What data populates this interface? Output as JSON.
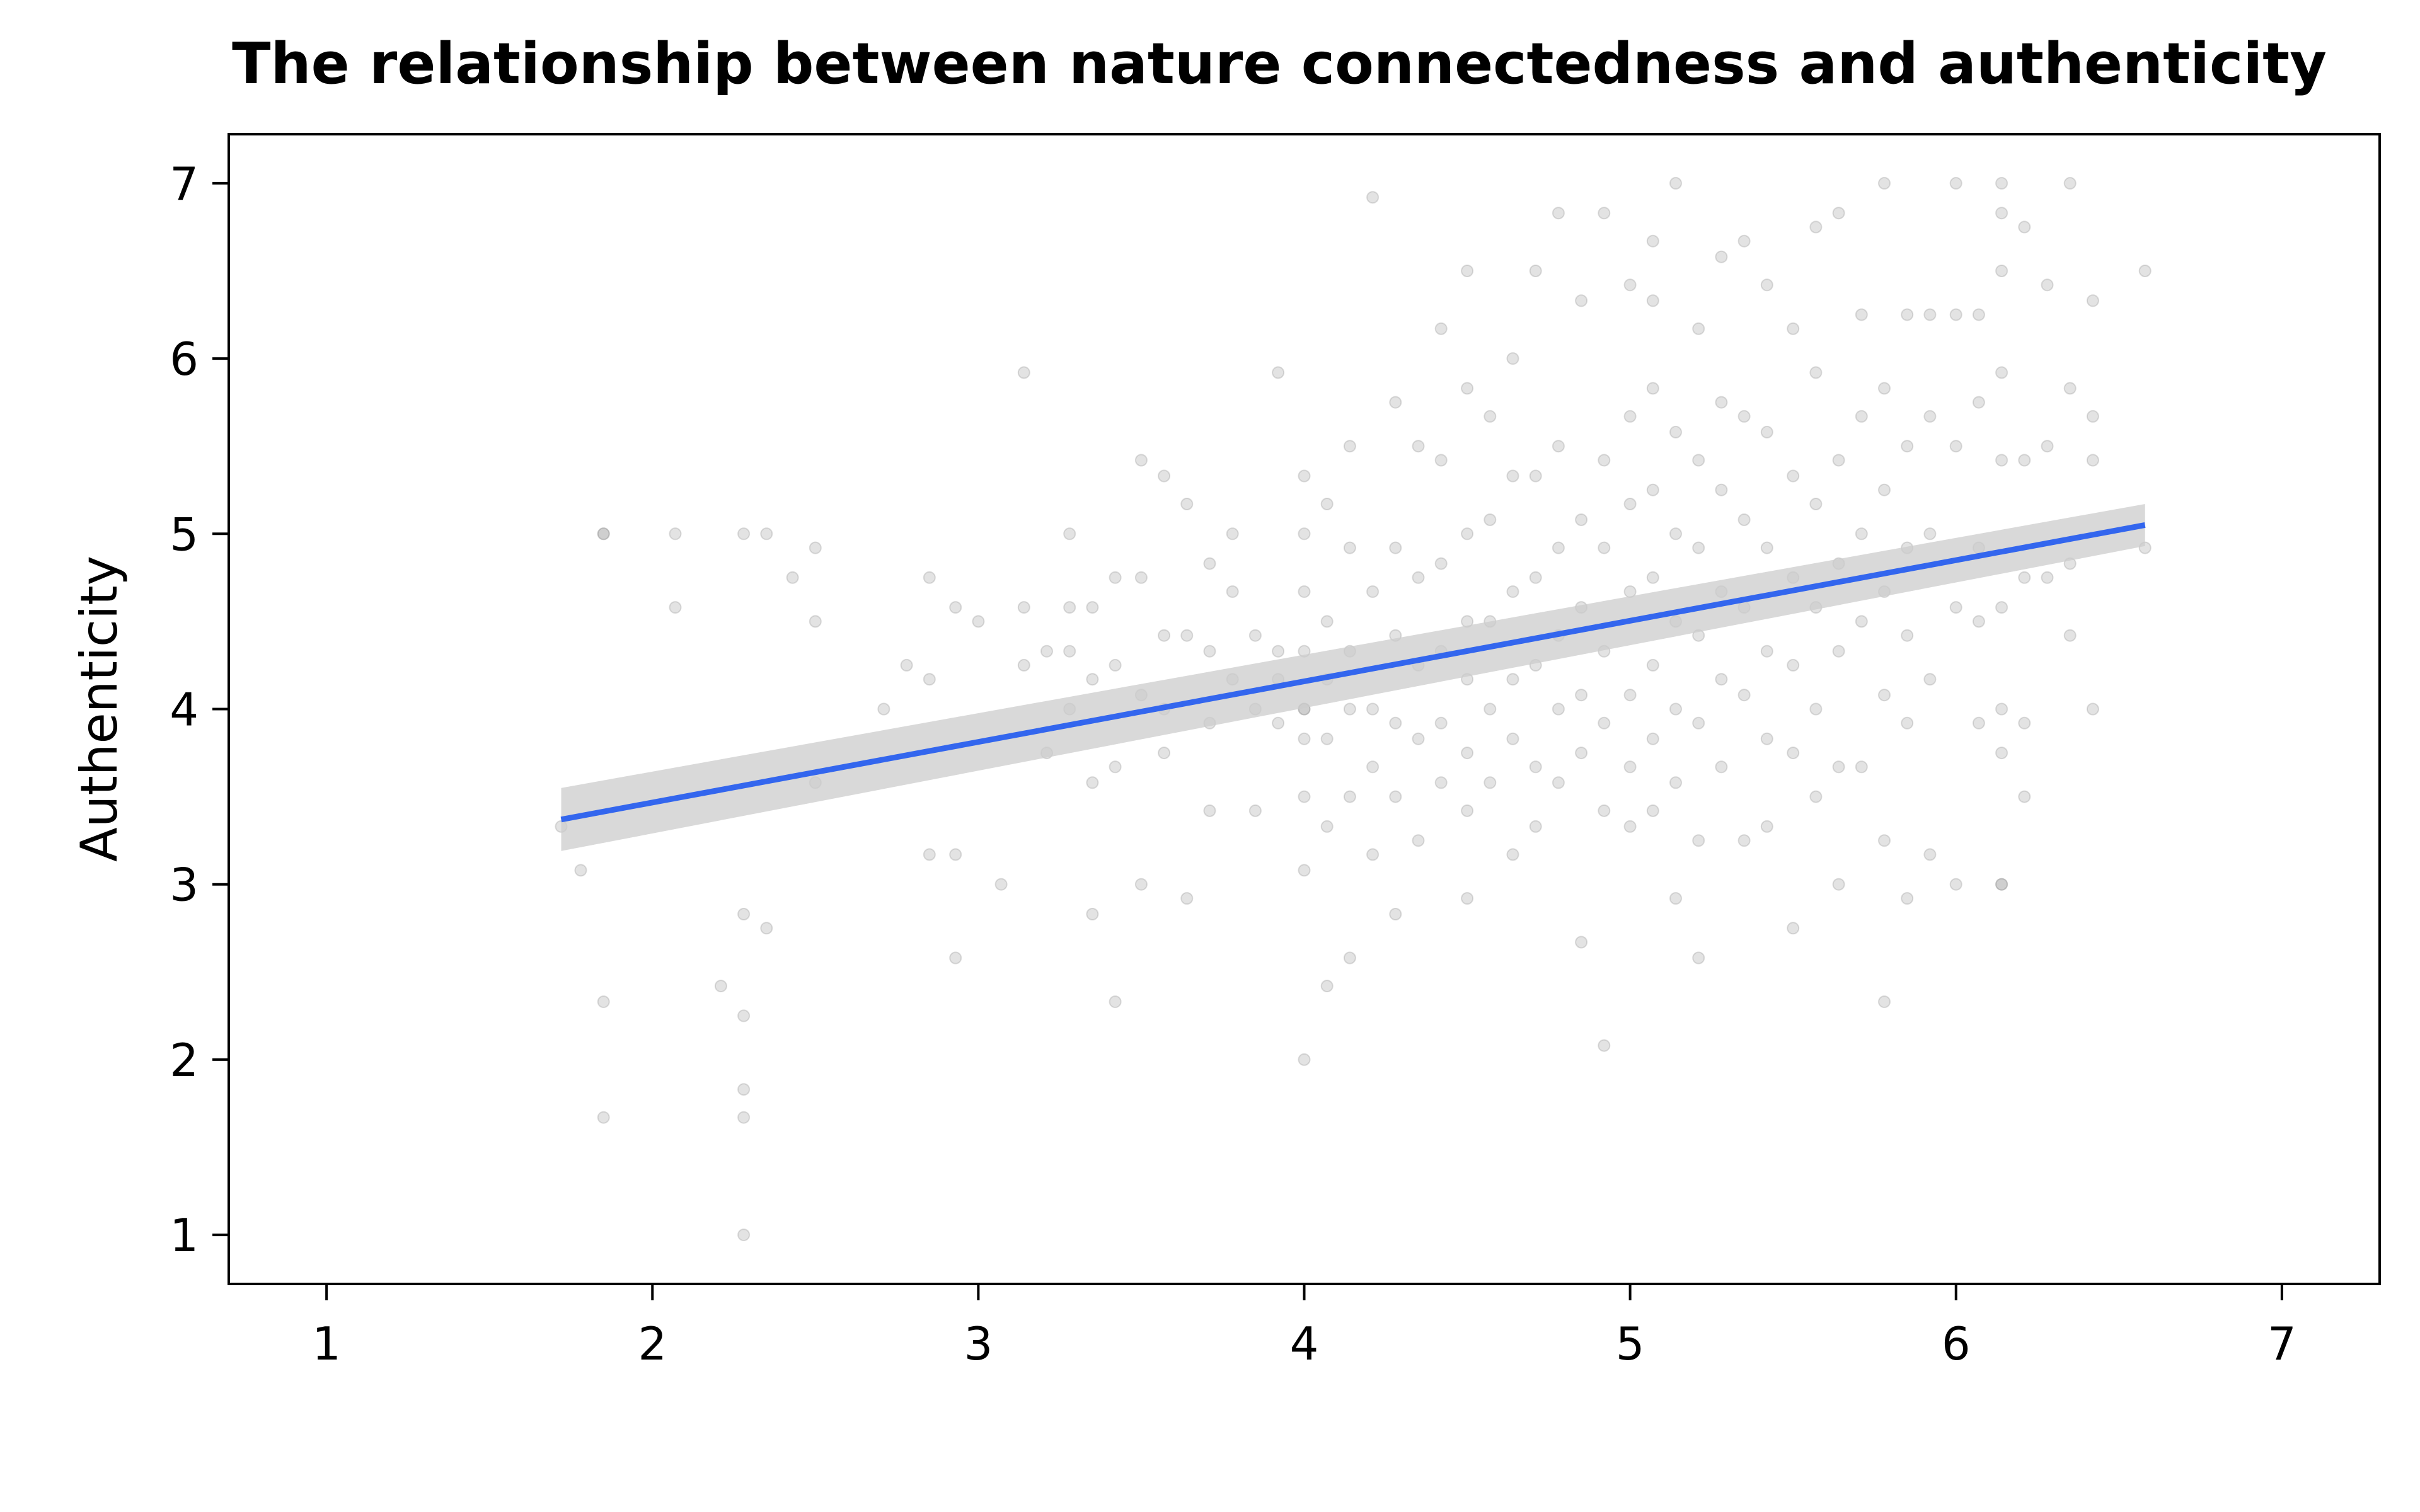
{
  "chart_data": {
    "type": "scatter",
    "title": "The relationship between nature connectedness and authenticity",
    "xlabel": "",
    "ylabel": "Authenticity",
    "xlim": [
      0.7,
      7.3
    ],
    "ylim": [
      0.72,
      7.28
    ],
    "xticks": [
      1,
      2,
      3,
      4,
      5,
      6,
      7
    ],
    "yticks": [
      1,
      2,
      3,
      4,
      5,
      6,
      7
    ],
    "grid": false,
    "colors": {
      "points": "#9a9a9a",
      "line": "#3366ee",
      "band": "#cccccc"
    },
    "regression": {
      "x": [
        1.72,
        6.58
      ],
      "y": [
        3.37,
        5.05
      ],
      "ci_halfwidth_at_ends": [
        0.18,
        0.12
      ]
    },
    "points": [
      [
        1.72,
        3.33
      ],
      [
        1.78,
        3.08
      ],
      [
        1.85,
        5.0
      ],
      [
        1.85,
        5.0
      ],
      [
        1.85,
        2.33
      ],
      [
        1.85,
        1.67
      ],
      [
        2.07,
        5.0
      ],
      [
        2.07,
        4.58
      ],
      [
        2.21,
        2.42
      ],
      [
        2.28,
        5.0
      ],
      [
        2.28,
        2.83
      ],
      [
        2.28,
        2.25
      ],
      [
        2.28,
        1.83
      ],
      [
        2.28,
        1.67
      ],
      [
        2.28,
        1.0
      ],
      [
        2.35,
        5.0
      ],
      [
        2.35,
        2.75
      ],
      [
        2.43,
        4.75
      ],
      [
        2.5,
        4.92
      ],
      [
        2.5,
        4.5
      ],
      [
        2.5,
        3.58
      ],
      [
        2.71,
        4.0
      ],
      [
        2.78,
        4.25
      ],
      [
        2.85,
        4.75
      ],
      [
        2.85,
        4.17
      ],
      [
        2.85,
        3.17
      ],
      [
        2.93,
        4.58
      ],
      [
        2.93,
        3.17
      ],
      [
        2.93,
        2.58
      ],
      [
        3.0,
        4.5
      ],
      [
        3.07,
        3.0
      ],
      [
        3.14,
        5.92
      ],
      [
        3.14,
        4.58
      ],
      [
        3.14,
        4.25
      ],
      [
        3.21,
        3.75
      ],
      [
        3.21,
        4.33
      ],
      [
        3.28,
        5.0
      ],
      [
        3.28,
        4.58
      ],
      [
        3.28,
        4.33
      ],
      [
        3.28,
        4.0
      ],
      [
        3.35,
        4.58
      ],
      [
        3.35,
        4.17
      ],
      [
        3.35,
        3.58
      ],
      [
        3.35,
        2.83
      ],
      [
        3.42,
        4.75
      ],
      [
        3.42,
        4.25
      ],
      [
        3.42,
        3.67
      ],
      [
        3.42,
        2.33
      ],
      [
        3.5,
        5.42
      ],
      [
        3.5,
        4.75
      ],
      [
        3.5,
        4.08
      ],
      [
        3.5,
        3.0
      ],
      [
        3.57,
        5.33
      ],
      [
        3.57,
        4.42
      ],
      [
        3.57,
        4.0
      ],
      [
        3.57,
        3.75
      ],
      [
        3.64,
        5.17
      ],
      [
        3.64,
        4.42
      ],
      [
        3.64,
        2.92
      ],
      [
        3.71,
        4.83
      ],
      [
        3.71,
        4.33
      ],
      [
        3.71,
        3.92
      ],
      [
        3.71,
        3.42
      ],
      [
        3.78,
        5.0
      ],
      [
        3.78,
        4.67
      ],
      [
        3.78,
        4.17
      ],
      [
        3.85,
        4.42
      ],
      [
        3.85,
        4.0
      ],
      [
        3.85,
        3.42
      ],
      [
        3.92,
        5.92
      ],
      [
        3.92,
        4.33
      ],
      [
        3.92,
        4.17
      ],
      [
        3.92,
        3.92
      ],
      [
        4.0,
        5.33
      ],
      [
        4.0,
        5.0
      ],
      [
        4.0,
        4.67
      ],
      [
        4.0,
        4.33
      ],
      [
        4.0,
        4.0
      ],
      [
        4.0,
        4.0
      ],
      [
        4.0,
        3.83
      ],
      [
        4.0,
        3.5
      ],
      [
        4.0,
        3.08
      ],
      [
        4.0,
        2.0
      ],
      [
        4.07,
        5.17
      ],
      [
        4.07,
        4.5
      ],
      [
        4.07,
        4.17
      ],
      [
        4.07,
        3.83
      ],
      [
        4.07,
        3.33
      ],
      [
        4.07,
        2.42
      ],
      [
        4.14,
        5.5
      ],
      [
        4.14,
        4.92
      ],
      [
        4.14,
        4.33
      ],
      [
        4.14,
        4.0
      ],
      [
        4.14,
        3.5
      ],
      [
        4.14,
        2.58
      ],
      [
        4.21,
        6.92
      ],
      [
        4.21,
        4.67
      ],
      [
        4.21,
        4.0
      ],
      [
        4.21,
        3.67
      ],
      [
        4.21,
        3.17
      ],
      [
        4.28,
        5.75
      ],
      [
        4.28,
        4.92
      ],
      [
        4.28,
        4.42
      ],
      [
        4.28,
        3.92
      ],
      [
        4.28,
        3.5
      ],
      [
        4.28,
        2.83
      ],
      [
        4.35,
        5.5
      ],
      [
        4.35,
        4.75
      ],
      [
        4.35,
        4.25
      ],
      [
        4.35,
        3.83
      ],
      [
        4.35,
        3.25
      ],
      [
        4.42,
        6.17
      ],
      [
        4.42,
        5.42
      ],
      [
        4.42,
        4.83
      ],
      [
        4.42,
        4.33
      ],
      [
        4.42,
        3.92
      ],
      [
        4.42,
        3.58
      ],
      [
        4.5,
        6.5
      ],
      [
        4.5,
        5.83
      ],
      [
        4.5,
        5.0
      ],
      [
        4.5,
        4.5
      ],
      [
        4.5,
        4.17
      ],
      [
        4.5,
        3.75
      ],
      [
        4.5,
        3.42
      ],
      [
        4.5,
        2.92
      ],
      [
        4.57,
        5.67
      ],
      [
        4.57,
        5.08
      ],
      [
        4.57,
        4.5
      ],
      [
        4.57,
        4.0
      ],
      [
        4.57,
        3.58
      ],
      [
        4.64,
        6.0
      ],
      [
        4.64,
        5.33
      ],
      [
        4.64,
        4.67
      ],
      [
        4.64,
        4.17
      ],
      [
        4.64,
        3.83
      ],
      [
        4.64,
        3.17
      ],
      [
        4.71,
        6.5
      ],
      [
        4.71,
        5.33
      ],
      [
        4.71,
        4.75
      ],
      [
        4.71,
        4.25
      ],
      [
        4.71,
        3.67
      ],
      [
        4.71,
        3.33
      ],
      [
        4.78,
        6.83
      ],
      [
        4.78,
        5.5
      ],
      [
        4.78,
        4.92
      ],
      [
        4.78,
        4.42
      ],
      [
        4.78,
        4.0
      ],
      [
        4.78,
        3.58
      ],
      [
        4.85,
        6.33
      ],
      [
        4.85,
        5.08
      ],
      [
        4.85,
        4.58
      ],
      [
        4.85,
        4.08
      ],
      [
        4.85,
        3.75
      ],
      [
        4.85,
        2.67
      ],
      [
        4.92,
        6.83
      ],
      [
        4.92,
        5.42
      ],
      [
        4.92,
        4.92
      ],
      [
        4.92,
        4.33
      ],
      [
        4.92,
        3.92
      ],
      [
        4.92,
        3.42
      ],
      [
        4.92,
        2.08
      ],
      [
        5.0,
        6.42
      ],
      [
        5.0,
        5.67
      ],
      [
        5.0,
        5.17
      ],
      [
        5.0,
        4.67
      ],
      [
        5.0,
        4.08
      ],
      [
        5.0,
        3.67
      ],
      [
        5.0,
        3.33
      ],
      [
        5.07,
        6.67
      ],
      [
        5.07,
        6.33
      ],
      [
        5.07,
        5.83
      ],
      [
        5.07,
        5.25
      ],
      [
        5.07,
        4.75
      ],
      [
        5.07,
        4.25
      ],
      [
        5.07,
        3.83
      ],
      [
        5.07,
        3.42
      ],
      [
        5.14,
        7.0
      ],
      [
        5.14,
        5.58
      ],
      [
        5.14,
        5.0
      ],
      [
        5.14,
        4.5
      ],
      [
        5.14,
        4.0
      ],
      [
        5.14,
        3.58
      ],
      [
        5.14,
        2.92
      ],
      [
        5.21,
        6.17
      ],
      [
        5.21,
        5.42
      ],
      [
        5.21,
        4.92
      ],
      [
        5.21,
        4.42
      ],
      [
        5.21,
        3.92
      ],
      [
        5.21,
        3.25
      ],
      [
        5.21,
        2.58
      ],
      [
        5.28,
        6.58
      ],
      [
        5.28,
        5.75
      ],
      [
        5.28,
        5.25
      ],
      [
        5.28,
        4.67
      ],
      [
        5.28,
        4.17
      ],
      [
        5.28,
        3.67
      ],
      [
        5.35,
        6.67
      ],
      [
        5.35,
        5.67
      ],
      [
        5.35,
        5.08
      ],
      [
        5.35,
        4.58
      ],
      [
        5.35,
        4.08
      ],
      [
        5.35,
        3.25
      ],
      [
        5.42,
        6.42
      ],
      [
        5.42,
        5.58
      ],
      [
        5.42,
        4.92
      ],
      [
        5.42,
        4.33
      ],
      [
        5.42,
        3.83
      ],
      [
        5.42,
        3.33
      ],
      [
        5.5,
        6.17
      ],
      [
        5.5,
        5.33
      ],
      [
        5.5,
        4.75
      ],
      [
        5.5,
        4.25
      ],
      [
        5.5,
        3.75
      ],
      [
        5.5,
        2.75
      ],
      [
        5.57,
        6.75
      ],
      [
        5.57,
        5.92
      ],
      [
        5.57,
        5.17
      ],
      [
        5.57,
        4.58
      ],
      [
        5.57,
        4.0
      ],
      [
        5.57,
        3.5
      ],
      [
        5.64,
        6.83
      ],
      [
        5.64,
        5.42
      ],
      [
        5.64,
        4.83
      ],
      [
        5.64,
        4.33
      ],
      [
        5.64,
        3.67
      ],
      [
        5.64,
        3.0
      ],
      [
        5.71,
        6.25
      ],
      [
        5.71,
        5.67
      ],
      [
        5.71,
        5.0
      ],
      [
        5.71,
        4.5
      ],
      [
        5.71,
        3.67
      ],
      [
        5.78,
        7.0
      ],
      [
        5.78,
        5.83
      ],
      [
        5.78,
        5.25
      ],
      [
        5.78,
        4.67
      ],
      [
        5.78,
        4.08
      ],
      [
        5.78,
        3.25
      ],
      [
        5.78,
        2.33
      ],
      [
        5.85,
        6.25
      ],
      [
        5.85,
        5.5
      ],
      [
        5.85,
        4.92
      ],
      [
        5.85,
        4.42
      ],
      [
        5.85,
        3.92
      ],
      [
        5.85,
        2.92
      ],
      [
        5.92,
        6.25
      ],
      [
        5.92,
        5.67
      ],
      [
        5.92,
        5.0
      ],
      [
        5.92,
        4.17
      ],
      [
        5.92,
        3.17
      ],
      [
        6.0,
        7.0
      ],
      [
        6.0,
        6.25
      ],
      [
        6.0,
        5.5
      ],
      [
        6.0,
        4.58
      ],
      [
        6.0,
        3.0
      ],
      [
        6.07,
        6.25
      ],
      [
        6.07,
        5.75
      ],
      [
        6.07,
        4.92
      ],
      [
        6.07,
        4.5
      ],
      [
        6.07,
        3.92
      ],
      [
        6.14,
        7.0
      ],
      [
        6.14,
        6.83
      ],
      [
        6.14,
        6.5
      ],
      [
        6.14,
        5.92
      ],
      [
        6.14,
        5.42
      ],
      [
        6.14,
        4.58
      ],
      [
        6.14,
        4.0
      ],
      [
        6.14,
        3.75
      ],
      [
        6.14,
        3.0
      ],
      [
        6.14,
        3.0
      ],
      [
        6.21,
        6.75
      ],
      [
        6.21,
        5.42
      ],
      [
        6.21,
        4.75
      ],
      [
        6.21,
        3.92
      ],
      [
        6.21,
        3.5
      ],
      [
        6.28,
        6.42
      ],
      [
        6.28,
        5.5
      ],
      [
        6.28,
        4.75
      ],
      [
        6.35,
        7.0
      ],
      [
        6.35,
        5.83
      ],
      [
        6.35,
        4.83
      ],
      [
        6.35,
        4.42
      ],
      [
        6.42,
        6.33
      ],
      [
        6.42,
        5.67
      ],
      [
        6.42,
        5.42
      ],
      [
        6.42,
        4.0
      ],
      [
        6.58,
        6.5
      ],
      [
        6.58,
        4.92
      ]
    ]
  }
}
